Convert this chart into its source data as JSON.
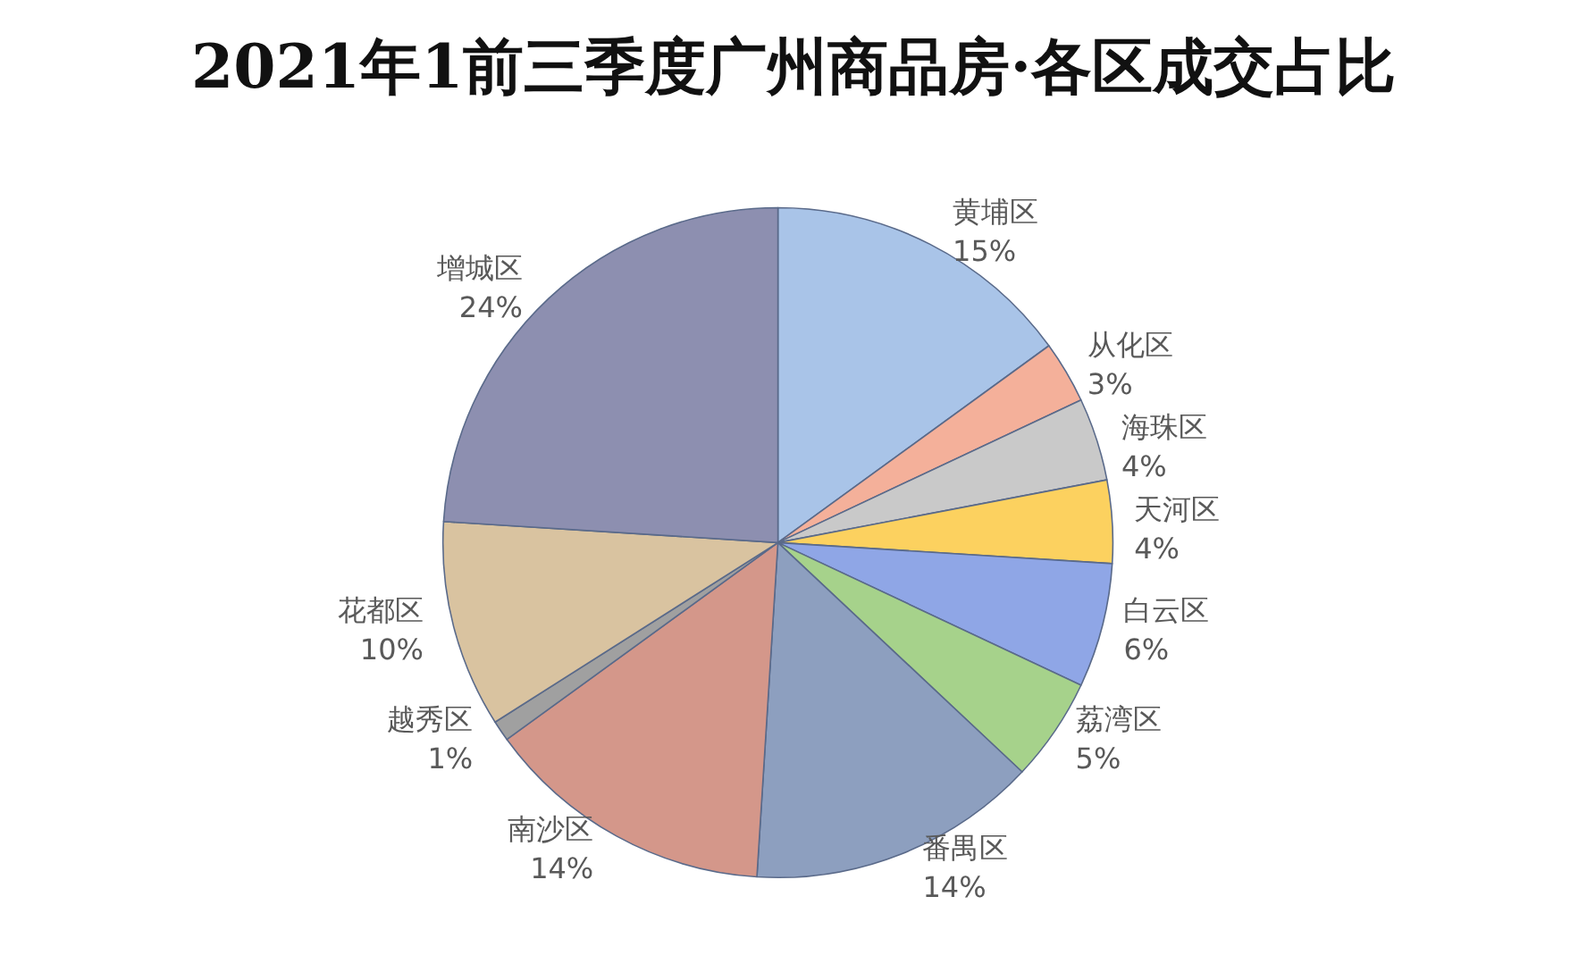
{
  "chart_data": {
    "type": "pie",
    "title": "2021年1前三季度广州商品房·各区成交占比",
    "categories": [
      "黄埔区",
      "从化区",
      "海珠区",
      "天河区",
      "白云区",
      "荔湾区",
      "番禺区",
      "南沙区",
      "越秀区",
      "花都区",
      "增城区"
    ],
    "values": [
      15,
      3,
      4,
      4,
      6,
      5,
      14,
      14,
      1,
      10,
      24
    ],
    "value_labels": [
      "15%",
      "3%",
      "4%",
      "4%",
      "6%",
      "5%",
      "14%",
      "14%",
      "1%",
      "10%",
      "24%"
    ],
    "colors": [
      "#a9c4e8",
      "#f4b09a",
      "#c9c9c9",
      "#fcd15f",
      "#8fa6e6",
      "#a6d28b",
      "#8d9fbf",
      "#d4978a",
      "#a0a0a0",
      "#d9c3a0",
      "#8d8fb0"
    ],
    "legend": false
  }
}
